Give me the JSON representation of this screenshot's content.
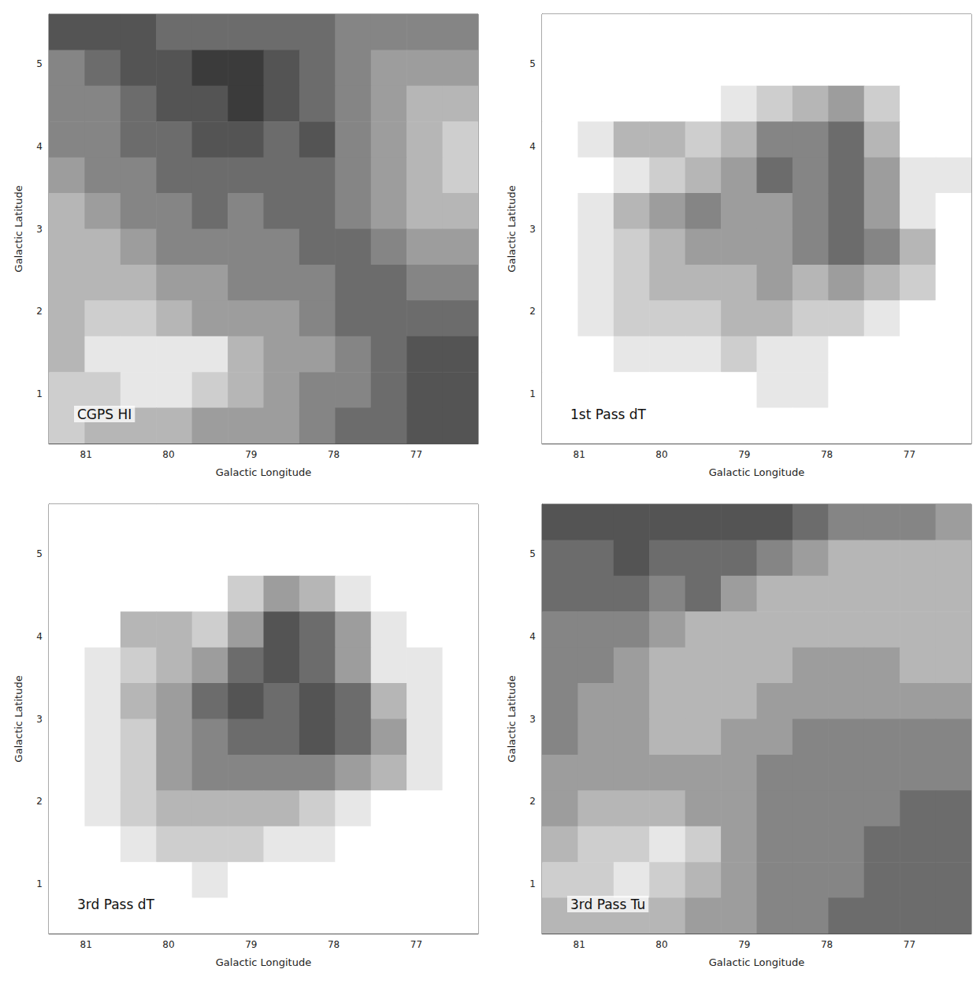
{
  "chart_data": [
    {
      "type": "heatmap",
      "title": "CGPS HI",
      "xlabel": "Galactic Longitude",
      "ylabel": "Galactic Latitude",
      "xlim": [
        81.45,
        76.25
      ],
      "ylim": [
        0.4,
        5.6
      ],
      "xticks": [
        81,
        80,
        79,
        78,
        77
      ],
      "yticks": [
        1,
        2,
        3,
        4,
        5
      ],
      "color_range": [
        0,
        9
      ],
      "cells": [
        [
          7,
          7,
          7,
          6,
          6,
          6,
          6,
          6,
          5,
          5,
          5,
          5
        ],
        [
          5,
          6,
          7,
          7,
          8,
          8,
          7,
          6,
          5,
          4,
          4,
          4
        ],
        [
          5,
          5,
          6,
          7,
          7,
          8,
          7,
          6,
          5,
          4,
          3,
          3
        ],
        [
          5,
          5,
          6,
          6,
          7,
          7,
          6,
          7,
          5,
          4,
          3,
          2
        ],
        [
          4,
          5,
          5,
          6,
          6,
          6,
          6,
          6,
          5,
          4,
          3,
          2
        ],
        [
          3,
          4,
          5,
          5,
          6,
          5,
          6,
          6,
          5,
          4,
          3,
          3
        ],
        [
          3,
          3,
          4,
          5,
          5,
          5,
          5,
          6,
          6,
          5,
          4,
          4
        ],
        [
          3,
          3,
          3,
          4,
          4,
          5,
          5,
          5,
          6,
          6,
          5,
          5
        ],
        [
          3,
          2,
          2,
          3,
          4,
          4,
          4,
          5,
          6,
          6,
          6,
          6
        ],
        [
          3,
          1,
          1,
          1,
          1,
          3,
          4,
          4,
          5,
          6,
          7,
          7
        ],
        [
          2,
          2,
          1,
          1,
          2,
          3,
          4,
          5,
          5,
          6,
          7,
          7
        ],
        [
          2,
          3,
          3,
          3,
          4,
          4,
          4,
          5,
          6,
          6,
          7,
          7
        ]
      ]
    },
    {
      "type": "heatmap",
      "title": "1st Pass dT",
      "xlabel": "Galactic Longitude",
      "ylabel": "Galactic Latitude",
      "xlim": [
        81.45,
        76.25
      ],
      "ylim": [
        0.4,
        5.6
      ],
      "xticks": [
        81,
        80,
        79,
        78,
        77
      ],
      "yticks": [
        1,
        2,
        3,
        4,
        5
      ],
      "color_range": [
        0,
        9
      ],
      "cells": [
        [
          0,
          0,
          0,
          0,
          0,
          0,
          0,
          0,
          0,
          0,
          0,
          0
        ],
        [
          0,
          0,
          0,
          0,
          0,
          0,
          0,
          0,
          0,
          0,
          0,
          0
        ],
        [
          0,
          0,
          0,
          0,
          0,
          1,
          2,
          3,
          4,
          2,
          0,
          0
        ],
        [
          0,
          1,
          3,
          3,
          2,
          3,
          5,
          5,
          6,
          3,
          0,
          0
        ],
        [
          0,
          0,
          1,
          2,
          3,
          4,
          6,
          5,
          6,
          4,
          1,
          1
        ],
        [
          0,
          1,
          3,
          4,
          5,
          4,
          4,
          5,
          6,
          4,
          1,
          0
        ],
        [
          0,
          1,
          2,
          3,
          4,
          4,
          4,
          5,
          6,
          5,
          3,
          0
        ],
        [
          0,
          1,
          2,
          3,
          3,
          3,
          4,
          3,
          4,
          3,
          2,
          0
        ],
        [
          0,
          1,
          2,
          2,
          2,
          3,
          3,
          2,
          2,
          1,
          0,
          0
        ],
        [
          0,
          0,
          1,
          1,
          1,
          2,
          1,
          1,
          0,
          0,
          0,
          0
        ],
        [
          0,
          0,
          0,
          0,
          0,
          0,
          1,
          1,
          0,
          0,
          0,
          0
        ],
        [
          0,
          0,
          0,
          0,
          0,
          0,
          0,
          0,
          0,
          0,
          0,
          0
        ]
      ]
    },
    {
      "type": "heatmap",
      "title": "3rd Pass dT",
      "xlabel": "Galactic Longitude",
      "ylabel": "Galactic Latitude",
      "xlim": [
        81.45,
        76.25
      ],
      "ylim": [
        0.4,
        5.6
      ],
      "xticks": [
        81,
        80,
        79,
        78,
        77
      ],
      "yticks": [
        1,
        2,
        3,
        4,
        5
      ],
      "color_range": [
        0,
        9
      ],
      "cells": [
        [
          0,
          0,
          0,
          0,
          0,
          0,
          0,
          0,
          0,
          0,
          0,
          0
        ],
        [
          0,
          0,
          0,
          0,
          0,
          0,
          0,
          0,
          0,
          0,
          0,
          0
        ],
        [
          0,
          0,
          0,
          0,
          0,
          2,
          4,
          3,
          1,
          0,
          0,
          0
        ],
        [
          0,
          0,
          3,
          3,
          2,
          4,
          7,
          6,
          4,
          1,
          0,
          0
        ],
        [
          0,
          1,
          2,
          3,
          4,
          6,
          7,
          6,
          4,
          1,
          1,
          0
        ],
        [
          0,
          1,
          3,
          4,
          6,
          7,
          6,
          7,
          6,
          3,
          1,
          0
        ],
        [
          0,
          1,
          2,
          4,
          5,
          6,
          6,
          7,
          6,
          4,
          1,
          0
        ],
        [
          0,
          1,
          2,
          4,
          5,
          5,
          5,
          5,
          4,
          3,
          1,
          0
        ],
        [
          0,
          1,
          2,
          3,
          3,
          3,
          3,
          2,
          1,
          0,
          0,
          0
        ],
        [
          0,
          0,
          1,
          2,
          2,
          2,
          1,
          1,
          0,
          0,
          0,
          0
        ],
        [
          0,
          0,
          0,
          0,
          1,
          0,
          0,
          0,
          0,
          0,
          0,
          0
        ],
        [
          0,
          0,
          0,
          0,
          0,
          0,
          0,
          0,
          0,
          0,
          0,
          0
        ]
      ]
    },
    {
      "type": "heatmap",
      "title": "3rd Pass Tu",
      "xlabel": "Galactic Longitude",
      "ylabel": "Galactic Latitude",
      "xlim": [
        81.45,
        76.25
      ],
      "ylim": [
        0.4,
        5.6
      ],
      "xticks": [
        81,
        80,
        79,
        78,
        77
      ],
      "yticks": [
        1,
        2,
        3,
        4,
        5
      ],
      "color_range": [
        0,
        9
      ],
      "cells": [
        [
          7,
          7,
          7,
          7,
          7,
          7,
          7,
          6,
          5,
          5,
          5,
          4
        ],
        [
          6,
          6,
          7,
          6,
          6,
          6,
          5,
          4,
          3,
          3,
          3,
          3
        ],
        [
          6,
          6,
          6,
          5,
          6,
          4,
          3,
          3,
          3,
          3,
          3,
          3
        ],
        [
          5,
          5,
          5,
          4,
          3,
          3,
          3,
          3,
          3,
          3,
          3,
          3
        ],
        [
          5,
          5,
          4,
          3,
          3,
          3,
          3,
          4,
          4,
          4,
          3,
          3
        ],
        [
          5,
          4,
          4,
          3,
          3,
          3,
          4,
          4,
          4,
          4,
          4,
          4
        ],
        [
          5,
          4,
          4,
          3,
          3,
          4,
          4,
          5,
          5,
          5,
          5,
          5
        ],
        [
          4,
          4,
          4,
          4,
          4,
          4,
          5,
          5,
          5,
          5,
          5,
          5
        ],
        [
          4,
          3,
          3,
          3,
          4,
          4,
          5,
          5,
          5,
          5,
          6,
          6
        ],
        [
          3,
          2,
          2,
          1,
          2,
          4,
          5,
          5,
          5,
          6,
          6,
          6
        ],
        [
          2,
          2,
          1,
          2,
          3,
          4,
          5,
          5,
          5,
          6,
          6,
          6
        ],
        [
          3,
          3,
          3,
          3,
          4,
          4,
          5,
          5,
          6,
          6,
          6,
          6
        ]
      ]
    }
  ]
}
